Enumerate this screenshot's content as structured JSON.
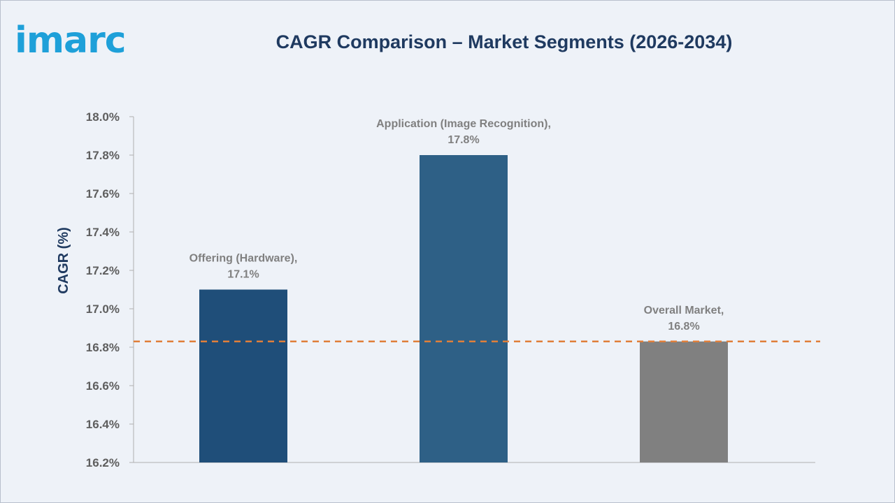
{
  "brand": {
    "logo_text": "imarc",
    "logo_color": "#1ea0d9"
  },
  "chart_data": {
    "type": "bar",
    "title": "CAGR Comparison – Market Segments (2026-2034)",
    "xlabel": "",
    "ylabel": "CAGR (%)",
    "ylim": [
      16.2,
      18.0
    ],
    "y_ticks": [
      "18.0%",
      "17.8%",
      "17.6%",
      "17.4%",
      "17.2%",
      "17.0%",
      "16.8%",
      "16.6%",
      "16.4%",
      "16.2%"
    ],
    "y_tick_values": [
      18.0,
      17.8,
      17.6,
      17.4,
      17.2,
      17.0,
      16.8,
      16.6,
      16.4,
      16.2
    ],
    "grid": false,
    "legend": "none",
    "categories": [
      "Offering (Hardware)",
      "Application (Image Recognition)",
      "Overall Market"
    ],
    "values": [
      17.1,
      17.8,
      16.83
    ],
    "data_labels": [
      [
        "Offering (Hardware),",
        "17.1%"
      ],
      [
        "Application (Image Recognition),",
        "17.8%"
      ],
      [
        "Overall Market,",
        "16.8%"
      ]
    ],
    "bar_colors": [
      "#1f4e79",
      "#2e6086",
      "#808080"
    ],
    "reference_line": {
      "value": 16.83,
      "style": "dashed",
      "color": "#e07f3a"
    }
  }
}
